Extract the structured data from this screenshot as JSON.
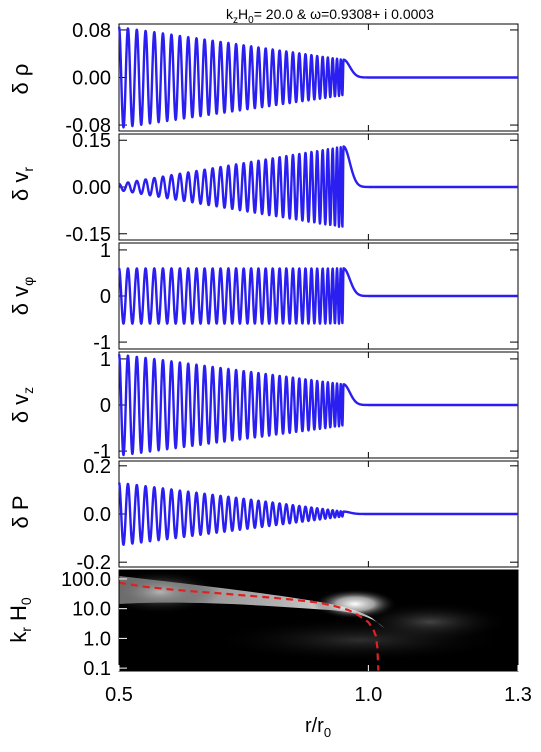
{
  "chart_data": {
    "type": "line",
    "title": "kzH0= 20.0 & ω=0.9308+ i 0.0003",
    "title_parts": {
      "k": "k",
      "z_sub": "z",
      "h": "H",
      "zero_sub": "0",
      "rest": "= 20.0 & ω=0.9308+ i 0.0003"
    },
    "xlabel": "r/r0",
    "xlabel_parts": {
      "main": "r/r",
      "sub": "0"
    },
    "x_range": [
      0.5,
      1.3
    ],
    "x_ticks": [
      "0.5",
      "1.0",
      "1.3"
    ],
    "x_tick_values": [
      0.5,
      1.0,
      1.3
    ],
    "panels": [
      {
        "ylabel": "δ ρ",
        "ylabel_parts": {
          "main": "δ ρ",
          "sub": ""
        },
        "ylim": [
          -0.09,
          0.09
        ],
        "y_ticks": [
          "0.08",
          "0.00",
          "-0.08"
        ],
        "y_tick_values": [
          0.08,
          0.0,
          -0.08
        ],
        "series": {
          "amp_start": 0.085,
          "amp_end": 0.03,
          "transition_r": 0.95
        }
      },
      {
        "ylabel": "δ vr",
        "ylabel_parts": {
          "main": "δ v",
          "sub": "r"
        },
        "ylim": [
          -0.17,
          0.17
        ],
        "y_ticks": [
          "0.15",
          "0.00",
          "-0.15"
        ],
        "y_tick_values": [
          0.15,
          0.0,
          -0.15
        ],
        "series": {
          "amp_start": 0.01,
          "amp_end": 0.13,
          "transition_r": 0.95
        }
      },
      {
        "ylabel": "δ vφ",
        "ylabel_parts": {
          "main": "δ v",
          "sub": "φ"
        },
        "ylim": [
          -1.15,
          1.15
        ],
        "y_ticks": [
          "1",
          "0",
          "-1"
        ],
        "y_tick_values": [
          1,
          0,
          -1
        ],
        "series": {
          "amp_start": 0.6,
          "amp_end": 0.6,
          "transition_r": 0.95
        }
      },
      {
        "ylabel": "δ vz",
        "ylabel_parts": {
          "main": "δ v",
          "sub": "z"
        },
        "ylim": [
          -1.15,
          1.15
        ],
        "y_ticks": [
          "1",
          "0",
          "-1"
        ],
        "y_tick_values": [
          1,
          0,
          -1
        ],
        "series": {
          "amp_start": 1.1,
          "amp_end": 0.45,
          "transition_r": 0.95
        }
      },
      {
        "ylabel": "δ P",
        "ylabel_parts": {
          "main": "δ P",
          "sub": ""
        },
        "ylim": [
          -0.22,
          0.22
        ],
        "y_ticks": [
          "0.2",
          "0.0",
          "-0.2"
        ],
        "y_tick_values": [
          0.2,
          0.0,
          -0.2
        ],
        "series": {
          "amp_start": 0.13,
          "amp_end": 0.01,
          "transition_r": 0.95
        }
      }
    ],
    "bottom_panel": {
      "type": "heatmap",
      "ylabel": "kr H0",
      "ylabel_parts": {
        "k": "k",
        "r_sub": "r",
        "h": " H",
        "zero_sub": "0"
      },
      "y_scale": "log",
      "ylim": [
        0.08,
        200
      ],
      "y_ticks": [
        "100.0",
        "10.0",
        "1.0",
        "0.1"
      ],
      "y_tick_values": [
        100,
        10,
        1,
        0.1
      ],
      "colormap": "grayscale, black background",
      "resonance_curve": {
        "style": "red dashed",
        "color": "#e02020",
        "points": [
          [
            0.5,
            75
          ],
          [
            0.55,
            55
          ],
          [
            0.6,
            45
          ],
          [
            0.65,
            38
          ],
          [
            0.7,
            33
          ],
          [
            0.75,
            28
          ],
          [
            0.8,
            24
          ],
          [
            0.85,
            20
          ],
          [
            0.9,
            16
          ],
          [
            0.93,
            12.5
          ],
          [
            0.96,
            9
          ],
          [
            0.98,
            6
          ],
          [
            1.0,
            3.5
          ],
          [
            1.01,
            2
          ],
          [
            1.015,
            1.2
          ],
          [
            1.018,
            0.5
          ],
          [
            1.02,
            0.08
          ]
        ]
      }
    },
    "wave_color": "#2a1ff0",
    "grid": false,
    "legend": "none"
  }
}
